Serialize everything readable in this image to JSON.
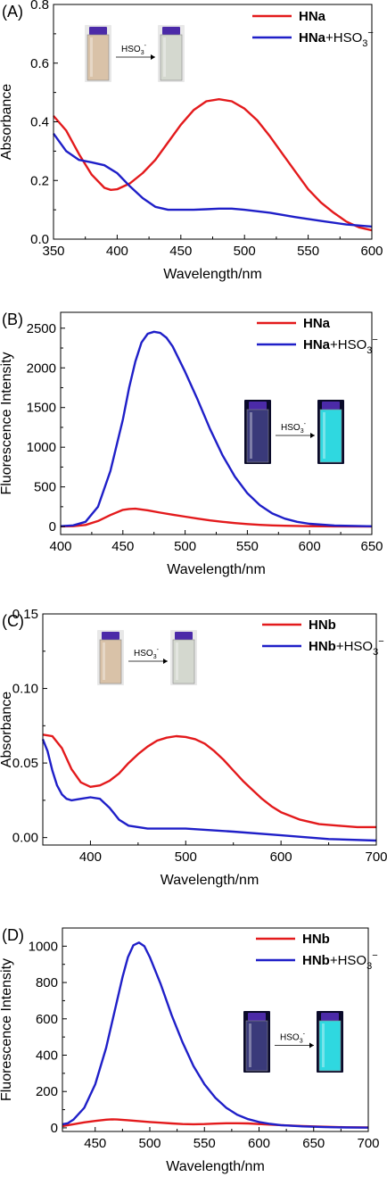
{
  "panels": [
    {
      "panel_label": "(A)",
      "legend": [
        {
          "bold": "HNa",
          "rest": "",
          "sub": "",
          "sup": ""
        },
        {
          "bold": "HNa",
          "rest": "+HSO",
          "sub": "3",
          "sup": "−"
        }
      ],
      "inset": {
        "label": "HSO",
        "sub": "3",
        "sup": "-",
        "mode": "absorbance"
      }
    },
    {
      "panel_label": "(B)",
      "legend": [
        {
          "bold": "HNa",
          "rest": "",
          "sub": "",
          "sup": ""
        },
        {
          "bold": "HNa",
          "rest": "+HSO",
          "sub": "3",
          "sup": "−"
        }
      ],
      "inset": {
        "label": "HSO",
        "sub": "3",
        "sup": "-",
        "mode": "fluorescence"
      }
    },
    {
      "panel_label": "(C)",
      "legend": [
        {
          "bold": "HNb",
          "rest": "",
          "sub": "",
          "sup": ""
        },
        {
          "bold": "HNb",
          "rest": "+HSO",
          "sub": "3",
          "sup": "−"
        }
      ],
      "inset": {
        "label": "HSO",
        "sub": "3",
        "sup": "-",
        "mode": "absorbance"
      }
    },
    {
      "panel_label": "(D)",
      "legend": [
        {
          "bold": "HNb",
          "rest": "",
          "sub": "",
          "sup": ""
        },
        {
          "bold": "HNb",
          "rest": "+HSO",
          "sub": "3",
          "sup": "−"
        }
      ],
      "inset": {
        "label": "HSO",
        "sub": "3",
        "sup": "-",
        "mode": "fluorescence"
      }
    }
  ],
  "colors": {
    "red": "#e31a1c",
    "blue": "#1f1fc8"
  },
  "chart_data": [
    {
      "type": "line",
      "xlabel": "Wavelength/nm",
      "ylabel": "Absorbance",
      "xlim": [
        350,
        600
      ],
      "ylim": [
        0,
        0.8
      ],
      "xticks": [
        350,
        400,
        450,
        500,
        550,
        600
      ],
      "yticks": [
        0.0,
        0.2,
        0.4,
        0.6,
        0.8
      ],
      "ytick_decimals": 1,
      "series": [
        {
          "name": "HNa",
          "color": "#e31a1c",
          "x": [
            350,
            360,
            370,
            380,
            390,
            395,
            400,
            410,
            420,
            430,
            440,
            450,
            460,
            470,
            480,
            490,
            500,
            510,
            520,
            530,
            540,
            550,
            560,
            570,
            580,
            590,
            600
          ],
          "y": [
            0.42,
            0.37,
            0.29,
            0.22,
            0.175,
            0.168,
            0.17,
            0.19,
            0.225,
            0.27,
            0.33,
            0.39,
            0.44,
            0.47,
            0.477,
            0.47,
            0.445,
            0.405,
            0.35,
            0.29,
            0.23,
            0.17,
            0.125,
            0.09,
            0.06,
            0.04,
            0.03
          ]
        },
        {
          "name": "HNa+HSO3−",
          "color": "#1f1fc8",
          "x": [
            350,
            360,
            370,
            380,
            390,
            400,
            410,
            420,
            430,
            440,
            450,
            460,
            470,
            480,
            490,
            500,
            520,
            540,
            560,
            580,
            600
          ],
          "y": [
            0.36,
            0.3,
            0.27,
            0.262,
            0.252,
            0.225,
            0.18,
            0.14,
            0.11,
            0.1,
            0.1,
            0.1,
            0.102,
            0.104,
            0.104,
            0.1,
            0.09,
            0.075,
            0.062,
            0.05,
            0.043
          ]
        }
      ]
    },
    {
      "type": "line",
      "xlabel": "Wavelength/nm",
      "ylabel": "Fluorescence Intensity",
      "xlim": [
        400,
        650
      ],
      "ylim": [
        -100,
        2700
      ],
      "xticks": [
        400,
        450,
        500,
        550,
        600,
        650
      ],
      "yticks": [
        0,
        500,
        1000,
        1500,
        2000,
        2500
      ],
      "ytick_decimals": 0,
      "series": [
        {
          "name": "HNa",
          "color": "#e31a1c",
          "x": [
            400,
            410,
            420,
            430,
            440,
            450,
            455,
            460,
            470,
            480,
            490,
            500,
            510,
            520,
            530,
            540,
            550,
            560,
            570,
            580,
            600,
            620,
            650
          ],
          "y": [
            2,
            5,
            20,
            70,
            145,
            210,
            222,
            225,
            205,
            175,
            150,
            125,
            100,
            78,
            60,
            44,
            32,
            22,
            15,
            10,
            5,
            2,
            1
          ]
        },
        {
          "name": "HNa+HSO3−",
          "color": "#1f1fc8",
          "x": [
            400,
            410,
            420,
            430,
            440,
            450,
            455,
            460,
            465,
            470,
            475,
            480,
            485,
            490,
            500,
            510,
            520,
            530,
            540,
            550,
            560,
            570,
            580,
            590,
            600,
            620,
            650
          ],
          "y": [
            5,
            15,
            60,
            250,
            700,
            1350,
            1750,
            2080,
            2320,
            2430,
            2455,
            2440,
            2380,
            2270,
            1950,
            1600,
            1230,
            900,
            630,
            420,
            270,
            165,
            100,
            60,
            35,
            12,
            3
          ]
        }
      ]
    },
    {
      "type": "line",
      "xlabel": "Wavelength/nm",
      "ylabel": "Absorbance",
      "xlim": [
        350,
        700
      ],
      "ylim": [
        -0.005,
        0.15
      ],
      "xticks": [
        400,
        500,
        600,
        700
      ],
      "yticks": [
        0.0,
        0.05,
        0.1,
        0.15
      ],
      "ytick_decimals": 2,
      "series": [
        {
          "name": "HNb",
          "color": "#e31a1c",
          "x": [
            350,
            360,
            370,
            380,
            390,
            400,
            410,
            420,
            430,
            440,
            450,
            460,
            470,
            480,
            490,
            500,
            510,
            520,
            530,
            540,
            550,
            560,
            570,
            580,
            590,
            600,
            620,
            640,
            660,
            680,
            700
          ],
          "y": [
            0.069,
            0.068,
            0.06,
            0.046,
            0.037,
            0.034,
            0.035,
            0.038,
            0.043,
            0.05,
            0.056,
            0.061,
            0.065,
            0.067,
            0.068,
            0.0675,
            0.066,
            0.063,
            0.058,
            0.052,
            0.045,
            0.038,
            0.032,
            0.026,
            0.021,
            0.017,
            0.012,
            0.009,
            0.008,
            0.007,
            0.007
          ]
        },
        {
          "name": "HNb+HSO3−",
          "color": "#1f1fc8",
          "x": [
            350,
            355,
            360,
            365,
            370,
            375,
            380,
            390,
            400,
            410,
            420,
            430,
            440,
            450,
            460,
            470,
            500,
            550,
            600,
            650,
            700
          ],
          "y": [
            0.066,
            0.058,
            0.045,
            0.035,
            0.029,
            0.026,
            0.025,
            0.026,
            0.027,
            0.026,
            0.02,
            0.012,
            0.008,
            0.007,
            0.006,
            0.006,
            0.006,
            0.004,
            0.0015,
            -0.001,
            -0.002
          ]
        }
      ]
    },
    {
      "type": "line",
      "xlabel": "Wavelength/nm",
      "ylabel": "Fluorescence Intensity",
      "xlim": [
        420,
        700
      ],
      "ylim": [
        -20,
        1100
      ],
      "xticks": [
        450,
        500,
        550,
        600,
        650,
        700
      ],
      "yticks": [
        0,
        200,
        400,
        600,
        800,
        1000
      ],
      "ytick_decimals": 0,
      "series": [
        {
          "name": "HNb",
          "color": "#e31a1c",
          "x": [
            420,
            430,
            440,
            450,
            460,
            465,
            470,
            480,
            490,
            500,
            510,
            520,
            530,
            540,
            550,
            560,
            570,
            580,
            590,
            600,
            620,
            640,
            660,
            680,
            700
          ],
          "y": [
            10,
            20,
            30,
            38,
            45,
            47,
            46,
            42,
            37,
            32,
            28,
            24,
            21,
            20,
            21,
            23,
            25,
            25,
            24,
            21,
            15,
            10,
            6,
            3,
            2
          ]
        },
        {
          "name": "HNb+HSO3−",
          "color": "#1f1fc8",
          "x": [
            420,
            425,
            430,
            440,
            450,
            460,
            470,
            475,
            480,
            485,
            490,
            495,
            500,
            510,
            520,
            530,
            540,
            550,
            560,
            570,
            580,
            590,
            600,
            610,
            620,
            640,
            660,
            680,
            700
          ],
          "y": [
            20,
            25,
            45,
            110,
            240,
            440,
            700,
            830,
            940,
            1005,
            1020,
            1000,
            940,
            790,
            620,
            470,
            340,
            240,
            165,
            110,
            72,
            48,
            32,
            22,
            15,
            8,
            4,
            2,
            1
          ]
        }
      ]
    }
  ]
}
